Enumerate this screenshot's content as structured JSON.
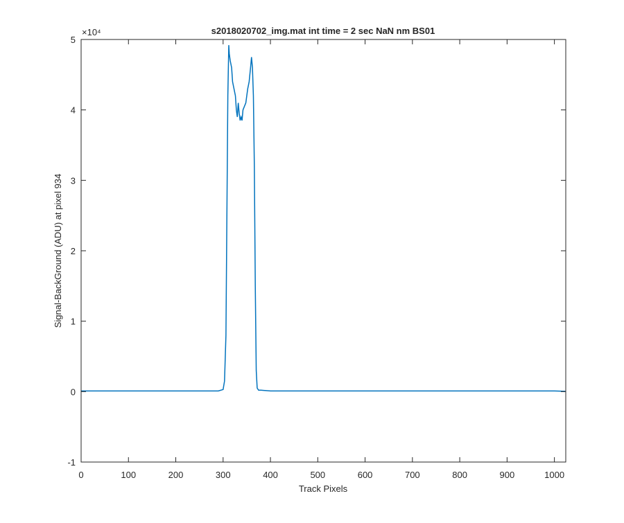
{
  "chart_data": {
    "type": "line",
    "title": "s2018020702_img.mat int time = 2 sec  NaN nm BS01",
    "x_label": "Track Pixels",
    "y_label": "Signal-BackGround (ADU) at pixel 934",
    "y_multiplier": "×10⁴",
    "x": [
      0,
      50,
      100,
      150,
      200,
      250,
      290,
      300,
      303,
      306,
      308,
      310,
      312,
      313,
      315,
      318,
      320,
      323,
      326,
      328,
      330,
      332,
      334,
      336,
      338,
      340,
      342,
      345,
      348,
      350,
      352,
      355,
      358,
      360,
      362,
      364,
      366,
      368,
      370,
      372,
      375,
      380,
      400,
      450,
      500,
      600,
      700,
      800,
      900,
      1000,
      1023
    ],
    "series": [
      {
        "name": "Signal",
        "color": "#0072bd",
        "values": [
          0.01,
          0.01,
          0.01,
          0.01,
          0.01,
          0.01,
          0.01,
          0.03,
          0.15,
          0.8,
          2.5,
          4.2,
          4.92,
          4.8,
          4.7,
          4.6,
          4.4,
          4.3,
          4.2,
          4.0,
          3.9,
          4.1,
          3.95,
          3.85,
          3.9,
          3.85,
          4.0,
          4.05,
          4.1,
          4.2,
          4.3,
          4.4,
          4.6,
          4.75,
          4.6,
          4.2,
          3.2,
          1.5,
          0.3,
          0.05,
          0.02,
          0.02,
          0.01,
          0.01,
          0.01,
          0.01,
          0.01,
          0.01,
          0.01,
          0.01,
          0.005
        ]
      }
    ],
    "xlim": [
      0,
      1024
    ],
    "ylim": [
      -1,
      5
    ],
    "xticks": [
      0,
      100,
      200,
      300,
      400,
      500,
      600,
      700,
      800,
      900,
      1000
    ],
    "yticks": [
      -1,
      0,
      1,
      2,
      3,
      4,
      5
    ]
  }
}
